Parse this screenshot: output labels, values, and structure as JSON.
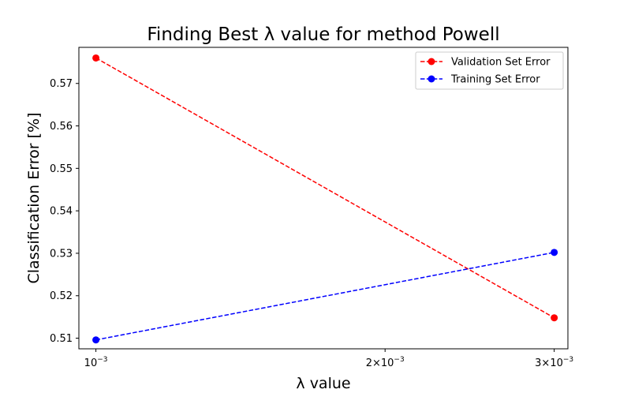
{
  "chart_data": {
    "type": "line",
    "title": "Finding Best λ value for method Powell",
    "xlabel": "λ value",
    "ylabel": "Classification Error [%]",
    "x_scale": "log",
    "x": [
      0.001,
      0.003
    ],
    "xlim": [
      0.00096,
      0.0031
    ],
    "ylim": [
      0.5075,
      0.5785
    ],
    "y_ticks": [
      "0.51",
      "0.52",
      "0.53",
      "0.54",
      "0.55",
      "0.56",
      "0.57"
    ],
    "x_ticks": [
      {
        "value": 0.001,
        "mantissa": "",
        "exponent": "−3"
      },
      {
        "value": 0.002,
        "mantissa": "2×",
        "exponent": "−3"
      },
      {
        "value": 0.003,
        "mantissa": "3×",
        "exponent": "−3"
      }
    ],
    "series": [
      {
        "name": "Validation Set Error",
        "values": [
          0.576,
          0.5148
        ],
        "color": "#ff0000",
        "line_style": "dashed",
        "marker": "circle"
      },
      {
        "name": "Training Set Error",
        "values": [
          0.5096,
          0.5302
        ],
        "color": "#0000ff",
        "line_style": "dashed",
        "marker": "circle"
      }
    ],
    "legend_position": "top-right",
    "grid": false
  }
}
